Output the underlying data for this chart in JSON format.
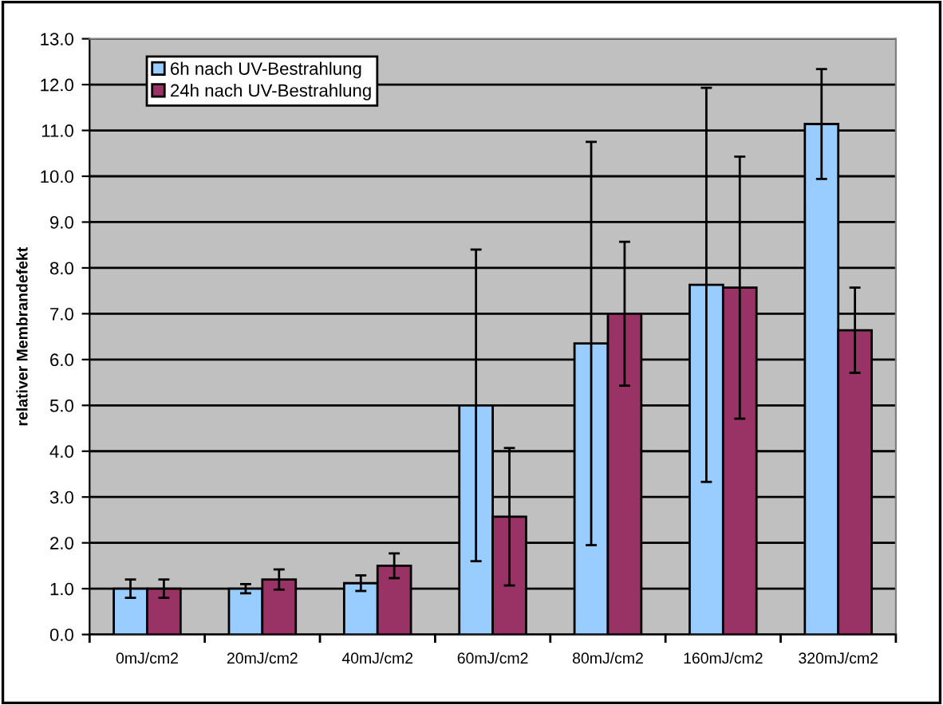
{
  "chart_data": {
    "type": "bar",
    "ylabel": "relativer Membrandefekt",
    "categories": [
      "0mJ/cm2",
      "20mJ/cm2",
      "40mJ/cm2",
      "60mJ/cm2",
      "80mJ/cm2",
      "160mJ/cm2",
      "320mJ/cm2"
    ],
    "series": [
      {
        "name": "6h nach UV-Bestrahlung",
        "color": "#99ccff",
        "values": [
          1.0,
          1.0,
          1.12,
          5.0,
          6.35,
          7.63,
          11.14
        ],
        "errors": [
          0.2,
          0.1,
          0.17,
          3.4,
          4.4,
          4.3,
          1.2
        ]
      },
      {
        "name": "24h nach UV-Bestrahlung",
        "color": "#993366",
        "values": [
          1.0,
          1.2,
          1.5,
          2.57,
          7.0,
          7.57,
          6.64
        ],
        "errors": [
          0.2,
          0.22,
          0.27,
          1.5,
          1.57,
          2.86,
          0.93
        ]
      }
    ],
    "ylim": [
      0,
      13
    ],
    "yticks": [
      {
        "value": 0,
        "label": "0.0"
      },
      {
        "value": 1,
        "label": "1.0"
      },
      {
        "value": 2,
        "label": "2.0"
      },
      {
        "value": 3,
        "label": "3.0"
      },
      {
        "value": 4,
        "label": "4.0"
      },
      {
        "value": 5,
        "label": "5.0"
      },
      {
        "value": 6,
        "label": "6.0"
      },
      {
        "value": 7,
        "label": "7.0"
      },
      {
        "value": 8,
        "label": "8.0"
      },
      {
        "value": 9,
        "label": "9.0"
      },
      {
        "value": 10,
        "label": "10.0"
      },
      {
        "value": 11,
        "label": "11.0"
      },
      {
        "value": 12,
        "label": "12.0"
      },
      {
        "value": 13,
        "label": "13.0"
      }
    ],
    "grid": "y",
    "legend": "top left"
  }
}
